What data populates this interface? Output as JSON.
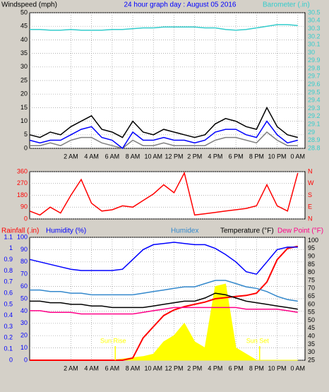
{
  "chart_data": [
    {
      "type": "line",
      "title": "24 hour graph day : August 05 2016",
      "ylabel": "Windspeed (mph)",
      "y2label": "Barometer (.in)",
      "x": [
        -2,
        -1,
        0,
        1,
        2,
        3,
        4,
        5,
        6,
        7,
        8,
        9,
        10,
        11,
        12,
        13,
        14,
        15,
        16,
        17,
        18,
        19,
        20,
        21,
        22,
        23,
        24
      ],
      "xlim": [
        -2,
        24.7
      ],
      "xticks": [
        {
          "value": 2,
          "label": "2 AM"
        },
        {
          "value": 4,
          "label": "4 AM"
        },
        {
          "value": 6,
          "label": "6 AM"
        },
        {
          "value": 8,
          "label": "8 AM"
        },
        {
          "value": 10,
          "label": "10 AM"
        },
        {
          "value": 12,
          "label": "12 PM"
        },
        {
          "value": 14,
          "label": "2 PM"
        },
        {
          "value": 16,
          "label": "4 PM"
        },
        {
          "value": 18,
          "label": "6 PM"
        },
        {
          "value": 20,
          "label": "8 PM"
        },
        {
          "value": 22,
          "label": "10 PM"
        },
        {
          "value": 24,
          "label": "0 AM"
        }
      ],
      "ylim": [
        0,
        50
      ],
      "yticks": [
        0,
        5,
        10,
        15,
        20,
        25,
        30,
        35,
        40,
        45,
        50
      ],
      "y2lim": [
        28.8,
        30.5
      ],
      "y2ticks": [
        28.8,
        28.9,
        29,
        29.1,
        29.2,
        29.3,
        29.4,
        29.5,
        29.6,
        29.7,
        29.8,
        29.9,
        30,
        30.1,
        30.2,
        30.3,
        30.4,
        30.5
      ],
      "grid": true,
      "series": [
        {
          "color": "#808080",
          "values": [
            1,
            1,
            2,
            1,
            3,
            4,
            4,
            2,
            1,
            0,
            3,
            1,
            1,
            2,
            1,
            1,
            1,
            1,
            3,
            4,
            4,
            3,
            2,
            6,
            3,
            1,
            1
          ]
        },
        {
          "color": "#000000",
          "values": [
            5,
            4,
            6,
            5,
            8,
            10,
            12,
            7,
            6,
            4,
            10,
            6,
            5,
            7,
            6,
            5,
            4,
            5,
            9,
            11,
            10,
            8,
            7,
            15,
            8,
            5,
            4
          ]
        },
        {
          "color": "#0000ff",
          "values": [
            3,
            2,
            3,
            3,
            5,
            7,
            8,
            4,
            3,
            0,
            6,
            3,
            3,
            4,
            3,
            3,
            2,
            3,
            6,
            7,
            7,
            5,
            4,
            10,
            5,
            2,
            3
          ]
        },
        {
          "color": "#33cccc",
          "axis": "y2",
          "values": [
            30.29,
            30.29,
            30.28,
            30.28,
            30.29,
            30.28,
            30.28,
            30.28,
            30.29,
            30.29,
            30.3,
            30.31,
            30.31,
            30.32,
            30.32,
            30.32,
            30.32,
            30.31,
            30.31,
            30.29,
            30.28,
            30.29,
            30.31,
            30.33,
            30.35,
            30.35,
            30.34
          ]
        }
      ]
    },
    {
      "type": "line",
      "x": [
        -2,
        -1,
        0,
        1,
        2,
        3,
        4,
        5,
        6,
        7,
        8,
        9,
        10,
        11,
        12,
        13,
        14,
        15,
        16,
        17,
        18,
        19,
        20,
        21,
        22,
        23,
        24
      ],
      "xlim": [
        -2,
        24.7
      ],
      "ylim": [
        0,
        360
      ],
      "yticks": [
        0,
        90,
        180,
        270,
        360
      ],
      "y2lim": [
        0,
        360
      ],
      "y2ticks": [
        {
          "value": 0,
          "label": "N"
        },
        {
          "value": 90,
          "label": "E"
        },
        {
          "value": 180,
          "label": "S"
        },
        {
          "value": 270,
          "label": "W"
        },
        {
          "value": 360,
          "label": "N"
        }
      ],
      "grid": true,
      "series": [
        {
          "color": "#ff0000",
          "values": [
            60,
            30,
            90,
            45,
            180,
            300,
            120,
            60,
            70,
            100,
            90,
            140,
            190,
            260,
            200,
            350,
            30,
            40,
            50,
            60,
            70,
            80,
            100,
            260,
            100,
            60,
            350
          ]
        }
      ]
    },
    {
      "type": "line",
      "x": [
        -2,
        -1,
        0,
        1,
        2,
        3,
        4,
        5,
        6,
        7,
        8,
        9,
        10,
        11,
        12,
        13,
        14,
        15,
        16,
        17,
        18,
        19,
        20,
        21,
        22,
        23,
        24
      ],
      "xlim": [
        -2,
        24.7
      ],
      "xticks": [
        {
          "value": 2,
          "label": "2 AM"
        },
        {
          "value": 4,
          "label": "4 AM"
        },
        {
          "value": 6,
          "label": "6 AM"
        },
        {
          "value": 8,
          "label": "8 AM"
        },
        {
          "value": 10,
          "label": "10 AM"
        },
        {
          "value": 12,
          "label": "12 PM"
        },
        {
          "value": 14,
          "label": "2 PM"
        },
        {
          "value": 16,
          "label": "4 PM"
        },
        {
          "value": 18,
          "label": "6 PM"
        },
        {
          "value": 20,
          "label": "8 PM"
        },
        {
          "value": 22,
          "label": "10 PM"
        },
        {
          "value": 24,
          "label": "0 AM"
        }
      ],
      "ylim": [
        0,
        100
      ],
      "yticks": [
        0,
        10,
        20,
        30,
        40,
        50,
        60,
        70,
        80,
        90,
        100
      ],
      "y2lim": [
        25,
        102
      ],
      "y2ticks": [
        25,
        30,
        35,
        40,
        45,
        50,
        55,
        60,
        65,
        70,
        75,
        80,
        85,
        90,
        95,
        100
      ],
      "y3lim": [
        0,
        1.1
      ],
      "y3ticks": [
        0,
        0.1,
        0.2,
        0.3,
        0.4,
        0.5,
        0.6,
        0.7,
        0.8,
        0.9,
        1,
        1.1
      ],
      "grid": true,
      "annotations": [
        {
          "text": "Sun Rise",
          "x": 6.3
        },
        {
          "text": "Sun Set",
          "x": 20.3
        }
      ],
      "series": [
        {
          "color": "#ffff00",
          "fill": true,
          "values": [
            0,
            0,
            0,
            0,
            0,
            0,
            0,
            0,
            0,
            1,
            2,
            3,
            5,
            15,
            20,
            30,
            15,
            10,
            60,
            62,
            10,
            5,
            0,
            0,
            0,
            0,
            0
          ]
        },
        {
          "name": "Rainfall (.in)",
          "color": "#ff0000",
          "axis": "y3",
          "values": [
            0,
            0,
            0,
            0,
            0,
            0,
            0,
            0,
            0,
            0,
            0.02,
            0.2,
            0.3,
            0.4,
            0.45,
            0.48,
            0.5,
            0.52,
            0.55,
            0.56,
            0.57,
            0.58,
            0.6,
            0.7,
            0.9,
            1.0,
            1.02
          ]
        },
        {
          "name": "Humidity (%)",
          "color": "#0000ff",
          "values": [
            82,
            80,
            78,
            76,
            74,
            73,
            73,
            73,
            73,
            74,
            82,
            90,
            94,
            95,
            96,
            95,
            94,
            94,
            91,
            86,
            80,
            72,
            70,
            80,
            90,
            92,
            92
          ]
        },
        {
          "name": "Humidex",
          "color": "#3388cc",
          "axis": "y2",
          "values": [
            69,
            69,
            68,
            68,
            67,
            67,
            66,
            66,
            66,
            66,
            66,
            67,
            68,
            69,
            70,
            71,
            71,
            73,
            75,
            75,
            73,
            71,
            70,
            68,
            65,
            63,
            62
          ]
        },
        {
          "name": "Temperature (°F)",
          "color": "#000000",
          "axis": "y2",
          "values": [
            62,
            62,
            61,
            61,
            60,
            60,
            59,
            59,
            58,
            58,
            58,
            58,
            59,
            60,
            61,
            62,
            62,
            64,
            67,
            66,
            64,
            62,
            61,
            60,
            59,
            58,
            57
          ]
        },
        {
          "name": "Dew Point (°F)",
          "color": "#ff0088",
          "axis": "y2",
          "values": [
            56,
            56,
            55,
            55,
            55,
            54,
            54,
            54,
            54,
            54,
            54,
            55,
            56,
            57,
            58,
            58,
            58,
            58,
            58,
            58,
            58,
            57,
            57,
            57,
            57,
            56,
            55
          ]
        }
      ]
    }
  ]
}
